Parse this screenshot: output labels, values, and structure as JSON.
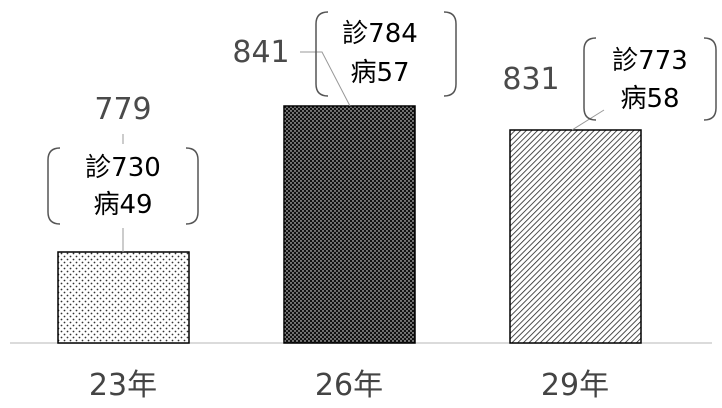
{
  "chart_data": {
    "type": "bar",
    "categories": [
      "23年",
      "26年",
      "29年"
    ],
    "values": [
      779,
      841,
      831
    ],
    "patterns": [
      "light-dots",
      "dense-dots",
      "diagonal-hatch"
    ],
    "breakdown_labels": [
      [
        "診730",
        "病49"
      ],
      [
        "診784",
        "病57"
      ],
      [
        "診773",
        "病58"
      ]
    ],
    "grid": false,
    "legend": "none"
  }
}
